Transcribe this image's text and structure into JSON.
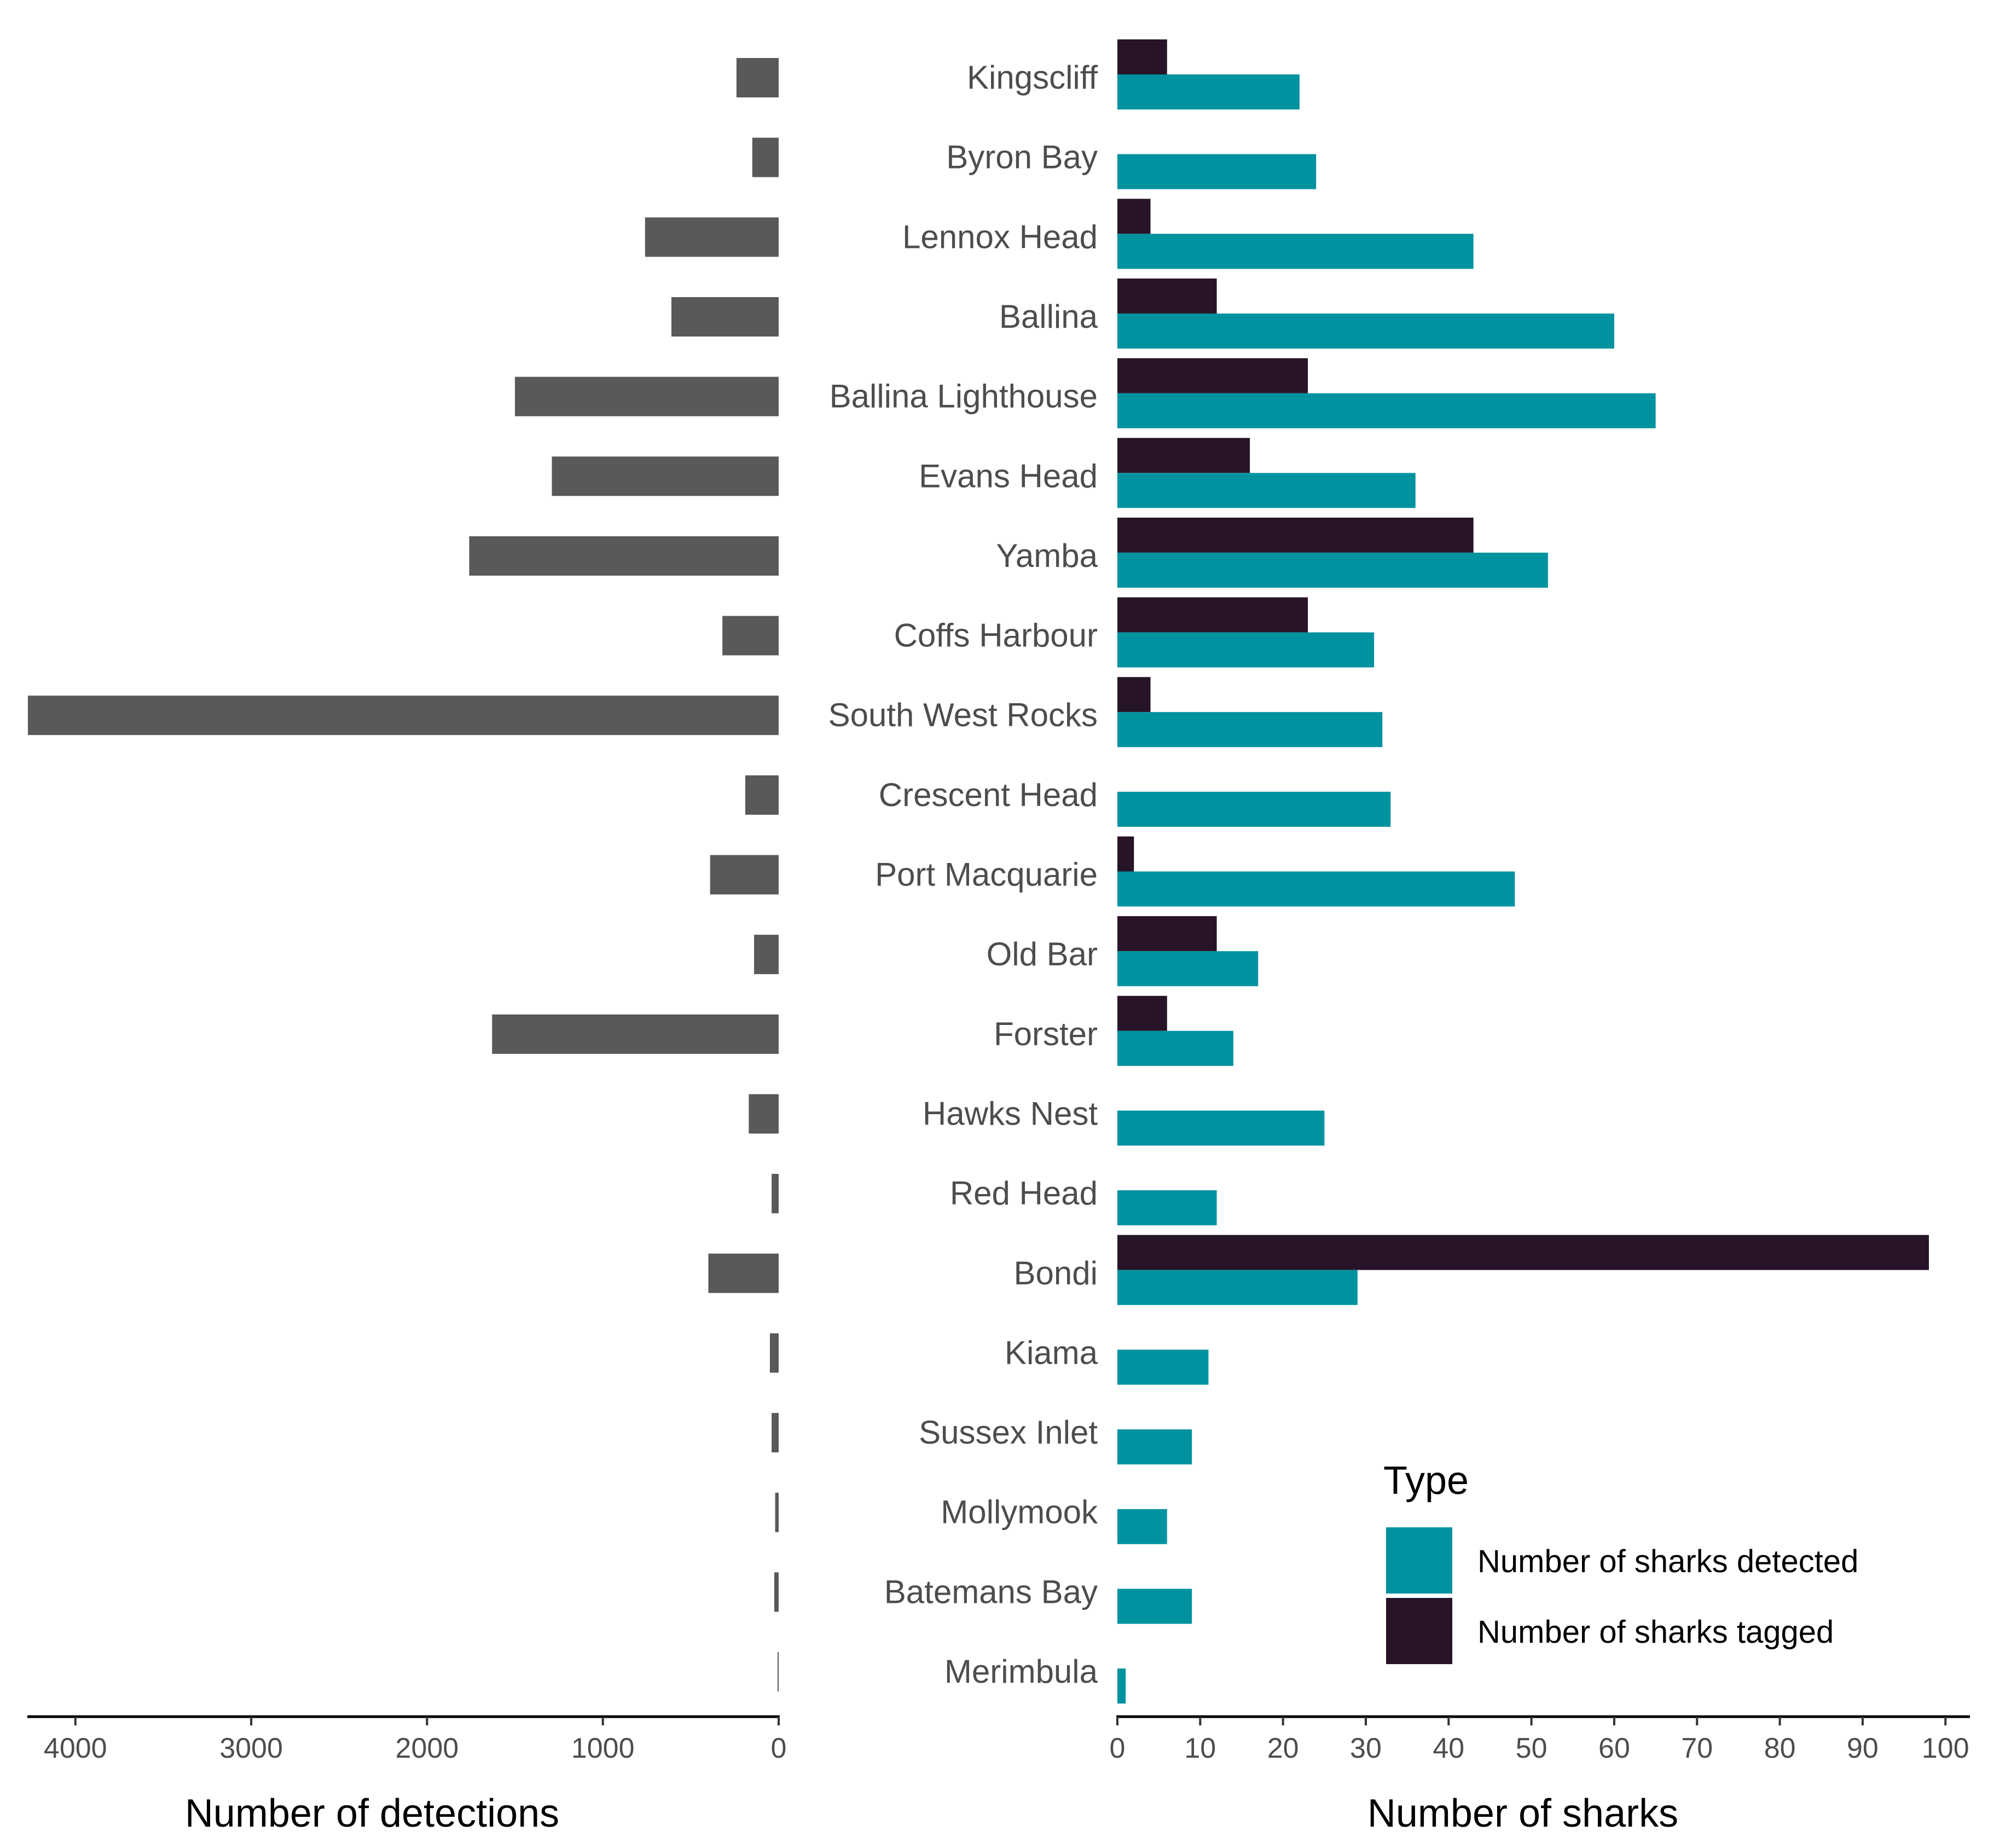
{
  "colors": {
    "detections": "#595959",
    "detected": "#00929F",
    "tagged": "#271428",
    "text": "#4D4D4D"
  },
  "chart_data": [
    {
      "type": "bar",
      "orientation": "horizontal-reversed",
      "title": "",
      "xlabel": "Number of detections",
      "xlim": [
        4270,
        0
      ],
      "xticks": [
        4000,
        3000,
        2000,
        1000,
        0
      ],
      "categories": [
        "Kingscliff",
        "Byron Bay",
        "Lennox Head",
        "Ballina",
        "Ballina Lighthouse",
        "Evans Head",
        "Yamba",
        "Coffs Harbour",
        "South West Rocks",
        "Crescent Head",
        "Port Macquarie",
        "Old Bar",
        "Forster",
        "Hawks Nest",
        "Red Head",
        "Bondi",
        "Kiama",
        "Sussex Inlet",
        "Mollymook",
        "Batemans Bay",
        "Merimbula"
      ],
      "series": [
        {
          "name": "Number of detections",
          "values": [
            240,
            150,
            760,
            610,
            1500,
            1290,
            1760,
            320,
            4270,
            190,
            390,
            140,
            1630,
            170,
            40,
            400,
            50,
            40,
            20,
            25,
            5
          ]
        }
      ]
    },
    {
      "type": "bar",
      "orientation": "horizontal",
      "title": "",
      "xlabel": "Number of sharks",
      "xlim": [
        0,
        102
      ],
      "xticks": [
        0,
        10,
        20,
        30,
        40,
        50,
        60,
        70,
        80,
        90,
        100
      ],
      "categories": [
        "Kingscliff",
        "Byron Bay",
        "Lennox Head",
        "Ballina",
        "Ballina Lighthouse",
        "Evans Head",
        "Yamba",
        "Coffs Harbour",
        "South West Rocks",
        "Crescent Head",
        "Port Macquarie",
        "Old Bar",
        "Forster",
        "Hawks Nest",
        "Red Head",
        "Bondi",
        "Kiama",
        "Sussex Inlet",
        "Mollymook",
        "Batemans Bay",
        "Merimbula"
      ],
      "series": [
        {
          "name": "Number of sharks tagged",
          "values": [
            6,
            0,
            4,
            12,
            23,
            16,
            43,
            23,
            4,
            0,
            2,
            12,
            6,
            0,
            0,
            98,
            0,
            0,
            0,
            0,
            0
          ]
        },
        {
          "name": "Number of sharks detected",
          "values": [
            22,
            24,
            43,
            60,
            65,
            36,
            52,
            31,
            32,
            33,
            48,
            17,
            14,
            25,
            12,
            29,
            11,
            9,
            6,
            9,
            1
          ]
        }
      ],
      "legend": {
        "title": "Type",
        "position": "bottom-right",
        "items": [
          "Number of sharks detected",
          "Number of sharks tagged"
        ]
      }
    }
  ]
}
